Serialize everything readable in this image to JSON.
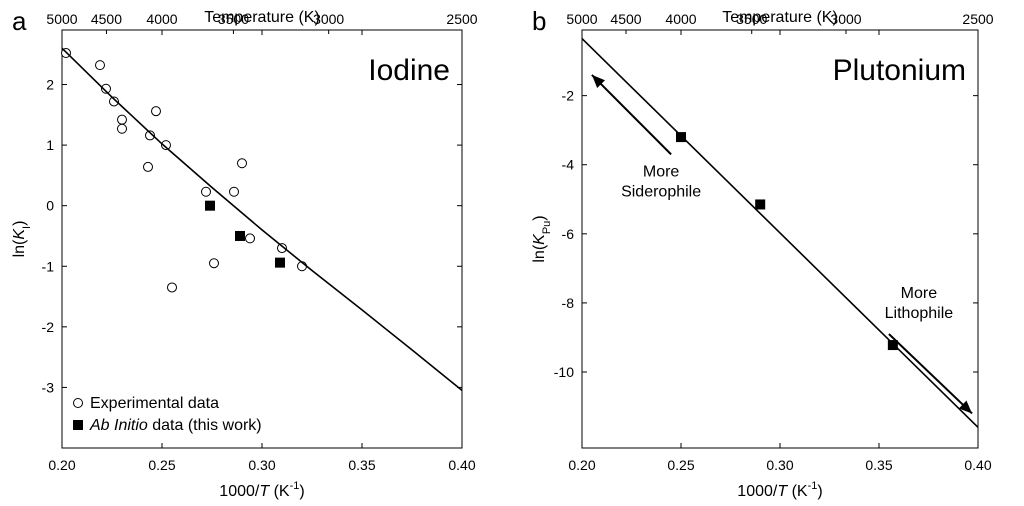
{
  "chart_data": [
    {
      "type": "scatter",
      "panel_label": "a",
      "element_label": "Iodine",
      "xlabel": {
        "prefix": "1000/",
        "var": "T",
        "unit_open": " (K",
        "sup": "-1",
        "unit_close": ")"
      },
      "ylabel": {
        "prefix": "ln(",
        "var": "K",
        "sub": "I",
        "suffix": ")"
      },
      "top_xlabel": "Temperature (K)",
      "xlim": [
        0.2,
        0.4
      ],
      "ylim": [
        -4,
        2.9
      ],
      "x_ticks": [
        0.2,
        0.25,
        0.3,
        0.35,
        0.4
      ],
      "x_tick_labels": [
        "0.20",
        "0.25",
        "0.30",
        "0.35",
        "0.40"
      ],
      "y_ticks": [
        2,
        1,
        0,
        -1,
        -2,
        -3
      ],
      "y_tick_labels": [
        "2",
        "1",
        "0",
        "-1",
        "-2",
        "-3"
      ],
      "top_ticks": [
        5000,
        4500,
        4000,
        3500,
        3000,
        2500
      ],
      "top_tick_labels": [
        "5000",
        "4500",
        "4000",
        "3500",
        "3000",
        "2500"
      ],
      "legend": {
        "placement": "bottom-left",
        "entries": [
          {
            "marker": "open-circle",
            "text": "Experimental data"
          },
          {
            "marker": "filled-square",
            "italic_text": "Ab Initio",
            "text": " data (this work)"
          }
        ]
      },
      "series": [
        {
          "name": "Experimental data",
          "marker": "open-circle",
          "points": [
            [
              0.202,
              2.52
            ],
            [
              0.219,
              2.32
            ],
            [
              0.222,
              1.93
            ],
            [
              0.226,
              1.72
            ],
            [
              0.23,
              1.42
            ],
            [
              0.23,
              1.27
            ],
            [
              0.244,
              1.16
            ],
            [
              0.247,
              1.56
            ],
            [
              0.252,
              1.0
            ],
            [
              0.243,
              0.64
            ],
            [
              0.272,
              0.23
            ],
            [
              0.276,
              -0.95
            ],
            [
              0.255,
              -1.35
            ],
            [
              0.286,
              0.23
            ],
            [
              0.29,
              0.7
            ],
            [
              0.294,
              -0.54
            ],
            [
              0.31,
              -0.7
            ],
            [
              0.32,
              -1.0
            ]
          ]
        },
        {
          "name": "Ab Initio data (this work)",
          "marker": "filled-square",
          "points": [
            [
              0.274,
              0.0
            ],
            [
              0.289,
              -0.5
            ],
            [
              0.309,
              -0.94
            ]
          ]
        },
        {
          "name": "fit",
          "marker": "line",
          "points": [
            [
              0.2,
              2.6
            ],
            [
              0.225,
              1.79
            ],
            [
              0.25,
              1.02
            ],
            [
              0.275,
              0.3
            ],
            [
              0.3,
              -0.4
            ],
            [
              0.325,
              -1.07
            ],
            [
              0.35,
              -1.72
            ],
            [
              0.375,
              -2.38
            ],
            [
              0.4,
              -3.05
            ]
          ]
        }
      ]
    },
    {
      "type": "scatter",
      "panel_label": "b",
      "element_label": "Plutonium",
      "xlabel": {
        "prefix": "1000/",
        "var": "T",
        "unit_open": " (K",
        "sup": "-1",
        "unit_close": ")"
      },
      "ylabel": {
        "prefix": "ln(",
        "var": "K",
        "sub": "Pu",
        "suffix": ")"
      },
      "top_xlabel": "Temperature (K)",
      "xlim": [
        0.2,
        0.4
      ],
      "ylim": [
        -12.2,
        -0.1
      ],
      "x_ticks": [
        0.2,
        0.25,
        0.3,
        0.35,
        0.4
      ],
      "x_tick_labels": [
        "0.20",
        "0.25",
        "0.30",
        "0.35",
        "0.40"
      ],
      "y_ticks": [
        -2,
        -4,
        -6,
        -8,
        -10
      ],
      "y_tick_labels": [
        "-2",
        "-4",
        "-6",
        "-8",
        "-10"
      ],
      "top_ticks": [
        5000,
        4500,
        4000,
        3500,
        3000,
        2500
      ],
      "top_tick_labels": [
        "5000",
        "4500",
        "4000",
        "3500",
        "3000",
        "2500"
      ],
      "annotations": [
        {
          "lines": [
            "More",
            "Siderophile"
          ],
          "arrow_from": [
            0.245,
            -3.7
          ],
          "arrow_to": [
            0.205,
            -1.4
          ]
        },
        {
          "lines": [
            "More",
            "Lithophile"
          ],
          "arrow_from": [
            0.355,
            -8.9
          ],
          "arrow_to": [
            0.397,
            -11.2
          ]
        }
      ],
      "series": [
        {
          "name": "Ab Initio data (this work)",
          "marker": "filled-square",
          "points": [
            [
              0.25,
              -3.2
            ],
            [
              0.29,
              -5.15
            ],
            [
              0.357,
              -9.22
            ]
          ]
        },
        {
          "name": "fit",
          "marker": "line",
          "points": [
            [
              0.2,
              -0.35
            ],
            [
              0.4,
              -11.6
            ]
          ]
        }
      ]
    }
  ]
}
